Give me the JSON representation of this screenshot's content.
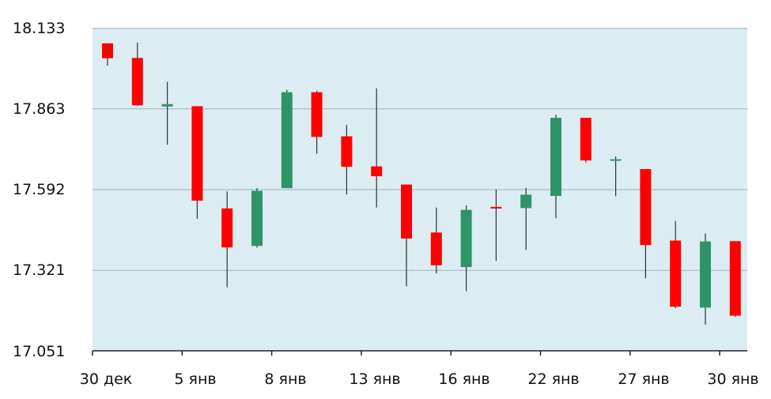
{
  "chart_data": {
    "type": "candlestick",
    "y_ticks": [
      "18.133",
      "17.863",
      "17.592",
      "17.321",
      "17.051"
    ],
    "y_tick_values": [
      18.133,
      17.863,
      17.592,
      17.321,
      17.051
    ],
    "ylim": [
      17.051,
      18.133
    ],
    "x_ticks": [
      "30 дек",
      "5 янв",
      "8 янв",
      "13 янв",
      "16 янв",
      "22 янв",
      "27 янв",
      "30 янв"
    ],
    "grid": true,
    "colors": {
      "up": "#2e9467",
      "down": "#ff0000",
      "plot_bg": "#dbecf2",
      "grid": "#9fb3bd",
      "axis": "#222222",
      "wick": "#333333"
    },
    "candles": [
      {
        "open": 18.083,
        "high": 18.083,
        "low": 18.008,
        "close": 18.033
      },
      {
        "open": 18.034,
        "high": 18.085,
        "low": 17.873,
        "close": 17.875
      },
      {
        "open": 17.871,
        "high": 17.954,
        "low": 17.743,
        "close": 17.879
      },
      {
        "open": 17.872,
        "high": 17.872,
        "low": 17.494,
        "close": 17.555
      },
      {
        "open": 17.529,
        "high": 17.586,
        "low": 17.264,
        "close": 17.398
      },
      {
        "open": 17.403,
        "high": 17.597,
        "low": 17.397,
        "close": 17.588
      },
      {
        "open": 17.597,
        "high": 17.927,
        "low": 17.597,
        "close": 17.919
      },
      {
        "open": 17.919,
        "high": 17.924,
        "low": 17.713,
        "close": 17.769
      },
      {
        "open": 17.771,
        "high": 17.809,
        "low": 17.576,
        "close": 17.669
      },
      {
        "open": 17.67,
        "high": 17.932,
        "low": 17.532,
        "close": 17.637
      },
      {
        "open": 17.609,
        "high": 17.609,
        "low": 17.267,
        "close": 17.428
      },
      {
        "open": 17.448,
        "high": 17.532,
        "low": 17.311,
        "close": 17.338
      },
      {
        "open": 17.332,
        "high": 17.539,
        "low": 17.251,
        "close": 17.524
      },
      {
        "open": 17.534,
        "high": 17.592,
        "low": 17.353,
        "close": 17.532
      },
      {
        "open": 17.53,
        "high": 17.598,
        "low": 17.39,
        "close": 17.575
      },
      {
        "open": 17.571,
        "high": 17.843,
        "low": 17.496,
        "close": 17.833
      },
      {
        "open": 17.833,
        "high": 17.833,
        "low": 17.683,
        "close": 17.69
      },
      {
        "open": 17.689,
        "high": 17.703,
        "low": 17.57,
        "close": 17.694
      },
      {
        "open": 17.661,
        "high": 17.661,
        "low": 17.294,
        "close": 17.406
      },
      {
        "open": 17.421,
        "high": 17.487,
        "low": 17.194,
        "close": 17.199
      },
      {
        "open": 17.196,
        "high": 17.445,
        "low": 17.139,
        "close": 17.418
      },
      {
        "open": 17.419,
        "high": 17.419,
        "low": 17.165,
        "close": 17.169
      }
    ]
  }
}
